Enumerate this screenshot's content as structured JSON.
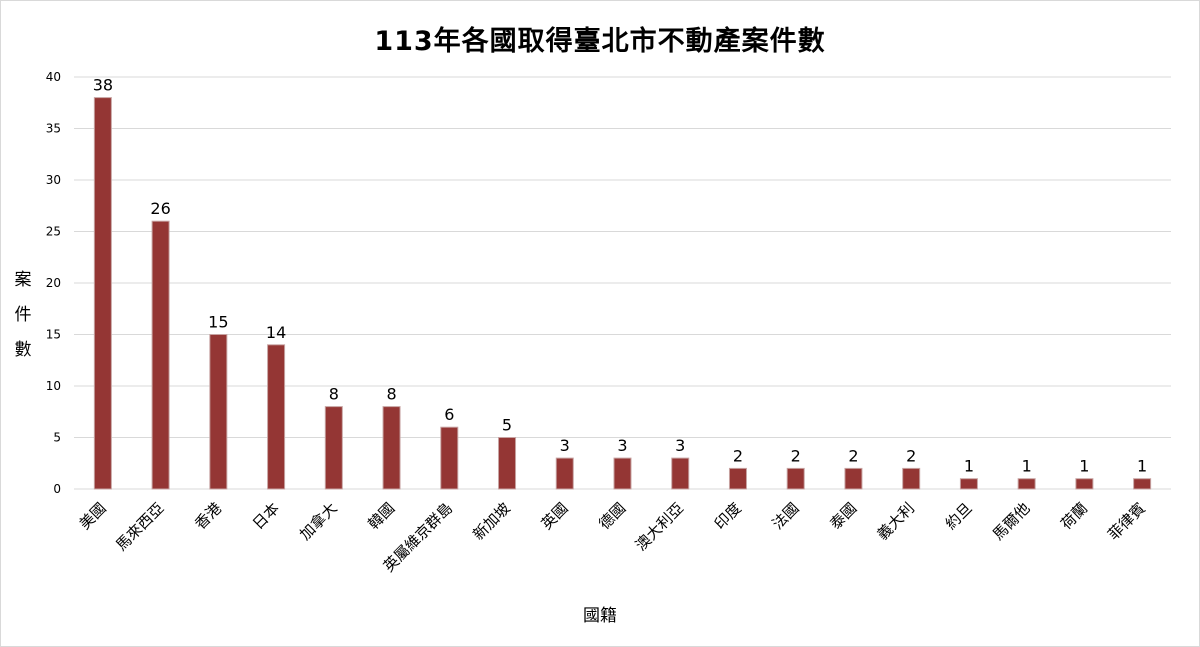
{
  "chart_data": {
    "type": "bar",
    "title": "113年各國取得臺北市不動產案件數",
    "xlabel": "國籍",
    "ylabel": "案件數",
    "categories": [
      "美國",
      "馬來西亞",
      "香港",
      "日本",
      "加拿大",
      "韓國",
      "英屬維京群島",
      "新加坡",
      "英國",
      "德國",
      "澳大利亞",
      "印度",
      "法國",
      "泰國",
      "義大利",
      "約旦",
      "馬爾他",
      "荷蘭",
      "菲律賓"
    ],
    "values": [
      38,
      26,
      15,
      14,
      8,
      8,
      6,
      5,
      3,
      3,
      3,
      2,
      2,
      2,
      2,
      1,
      1,
      1,
      1
    ],
    "ylim": [
      0,
      40
    ],
    "yticks": [
      0,
      5,
      10,
      15,
      20,
      25,
      30,
      35,
      40
    ],
    "grid": true,
    "legend": "none",
    "colors": {
      "bar": "#943634",
      "bar_edge": "#c7a3a2",
      "grid": "#d9d9d9"
    }
  }
}
